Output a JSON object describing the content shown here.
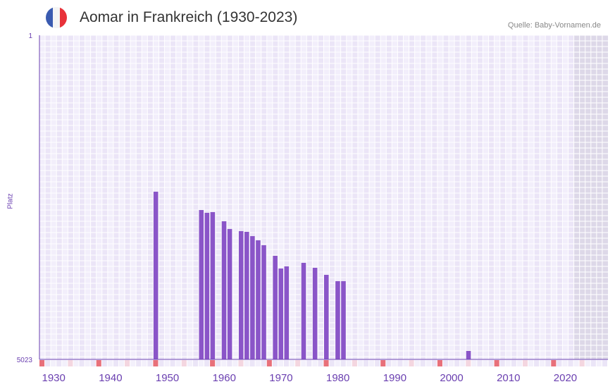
{
  "header": {
    "title": "Aomar in Frankreich (1930-2023)",
    "source": "Quelle: Baby-Vornamen.de",
    "flag_colors": [
      "#3a5bb0",
      "#f4f4f4",
      "#e8323a"
    ]
  },
  "chart_data": {
    "type": "bar",
    "title": "Aomar in Frankreich (1930-2023)",
    "xlabel": "",
    "ylabel": "Platz",
    "xlim": [
      1928,
      2028
    ],
    "ylim": [
      5023,
      1
    ],
    "y_ticks": [
      "1",
      "5023"
    ],
    "x_ticks": [
      1930,
      1940,
      1950,
      1960,
      1970,
      1980,
      1990,
      2000,
      2010,
      2020
    ],
    "x": [
      1948,
      1956,
      1957,
      1958,
      1960,
      1961,
      1963,
      1964,
      1965,
      1966,
      1967,
      1969,
      1970,
      1971,
      1974,
      1976,
      1978,
      1980,
      1981,
      2003
    ],
    "values": [
      2425,
      2709,
      2752,
      2741,
      2883,
      3003,
      3036,
      3047,
      3113,
      3178,
      3254,
      3418,
      3615,
      3582,
      3527,
      3604,
      3713,
      3811,
      3811,
      4892
    ],
    "shaded_from": 2022,
    "bar_color": "#8a55c8",
    "axis_color": "#6a3fb0"
  }
}
